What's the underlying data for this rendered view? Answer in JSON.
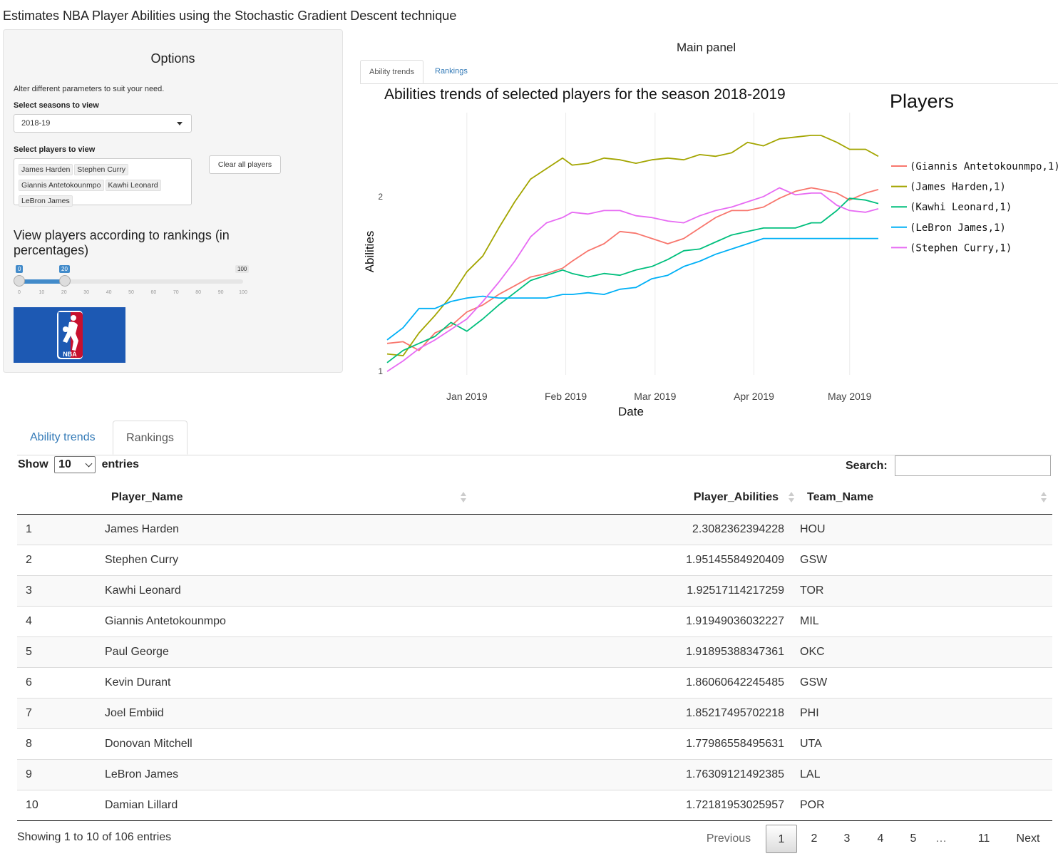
{
  "app": {
    "title": "Estimates NBA Player Abilities using the Stochastic Gradient Descent technique"
  },
  "sidebar": {
    "title": "Options",
    "description": "Alter different parameters to suit your need.",
    "season_label": "Select seasons to view",
    "season_value": "2018-19",
    "players_label": "Select players to view",
    "selected_players": [
      "James Harden",
      "Stephen Curry",
      "Giannis Antetokounmpo",
      "Kawhi Leonard",
      "LeBron James"
    ],
    "clear_button": "Clear all players",
    "rank_heading": "View players according to rankings (in percentages)",
    "slider": {
      "min": 0,
      "max": 100,
      "from": 0,
      "to": 20,
      "min_label": "0",
      "from_label": "0",
      "to_label": "20",
      "max_label": "100",
      "ticks": [
        "0",
        "10",
        "20",
        "30",
        "40",
        "50",
        "60",
        "70",
        "80",
        "90",
        "100"
      ]
    },
    "logo_icon": "nba-logo-icon"
  },
  "main": {
    "title": "Main panel",
    "tabs": [
      {
        "label": "Ability trends"
      },
      {
        "label": "Rankings"
      }
    ]
  },
  "chart_data": {
    "type": "line",
    "title": "Abilities trends of selected players for the season 2018-2019",
    "xlabel": "Date",
    "ylabel": "Abilities",
    "legend_title": "Players",
    "legend_position": "right",
    "x_ticks": [
      "Jan 2019",
      "Feb 2019",
      "Mar 2019",
      "Apr 2019",
      "May 2019"
    ],
    "x_tick_dates": [
      "2019-01-01",
      "2019-02-01",
      "2019-03-01",
      "2019-04-01",
      "2019-05-01"
    ],
    "x_range": [
      "2018-12-07",
      "2019-05-10"
    ],
    "y_ticks": [
      "1",
      "2"
    ],
    "y_tick_values": [
      1,
      2
    ],
    "ylim": [
      0.98,
      2.48
    ],
    "grid": "vertical",
    "series": [
      {
        "name": "(Giannis Antetokounmpo,1)",
        "color": "#f8766d",
        "points": [
          [
            "2018-12-07",
            1.16
          ],
          [
            "2018-12-12",
            1.17
          ],
          [
            "2018-12-17",
            1.12
          ],
          [
            "2018-12-22",
            1.22
          ],
          [
            "2018-12-27",
            1.26
          ],
          [
            "2019-01-01",
            1.34
          ],
          [
            "2019-01-06",
            1.38
          ],
          [
            "2019-01-11",
            1.44
          ],
          [
            "2019-01-16",
            1.49
          ],
          [
            "2019-01-21",
            1.54
          ],
          [
            "2019-01-26",
            1.56
          ],
          [
            "2019-01-31",
            1.59
          ],
          [
            "2019-02-03",
            1.63
          ],
          [
            "2019-02-08",
            1.69
          ],
          [
            "2019-02-13",
            1.73
          ],
          [
            "2019-02-18",
            1.8
          ],
          [
            "2019-02-23",
            1.79
          ],
          [
            "2019-02-28",
            1.76
          ],
          [
            "2019-03-05",
            1.73
          ],
          [
            "2019-03-10",
            1.76
          ],
          [
            "2019-03-15",
            1.82
          ],
          [
            "2019-03-20",
            1.88
          ],
          [
            "2019-03-25",
            1.92
          ],
          [
            "2019-03-30",
            1.92
          ],
          [
            "2019-04-04",
            1.94
          ],
          [
            "2019-04-09",
            1.99
          ],
          [
            "2019-04-14",
            2.03
          ],
          [
            "2019-04-19",
            2.05
          ],
          [
            "2019-04-22",
            2.04
          ],
          [
            "2019-04-27",
            2.02
          ],
          [
            "2019-05-01",
            1.98
          ],
          [
            "2019-05-06",
            2.02
          ],
          [
            "2019-05-10",
            2.04
          ]
        ]
      },
      {
        "name": "(James Harden,1)",
        "color": "#a3a500",
        "points": [
          [
            "2018-12-07",
            1.1
          ],
          [
            "2018-12-12",
            1.09
          ],
          [
            "2018-12-17",
            1.22
          ],
          [
            "2018-12-22",
            1.32
          ],
          [
            "2018-12-27",
            1.43
          ],
          [
            "2019-01-01",
            1.57
          ],
          [
            "2019-01-06",
            1.66
          ],
          [
            "2019-01-11",
            1.82
          ],
          [
            "2019-01-16",
            1.97
          ],
          [
            "2019-01-21",
            2.1
          ],
          [
            "2019-01-26",
            2.16
          ],
          [
            "2019-01-31",
            2.22
          ],
          [
            "2019-02-03",
            2.18
          ],
          [
            "2019-02-08",
            2.19
          ],
          [
            "2019-02-13",
            2.22
          ],
          [
            "2019-02-18",
            2.21
          ],
          [
            "2019-02-23",
            2.19
          ],
          [
            "2019-02-28",
            2.21
          ],
          [
            "2019-03-05",
            2.22
          ],
          [
            "2019-03-10",
            2.21
          ],
          [
            "2019-03-15",
            2.24
          ],
          [
            "2019-03-20",
            2.23
          ],
          [
            "2019-03-25",
            2.25
          ],
          [
            "2019-03-30",
            2.31
          ],
          [
            "2019-04-04",
            2.29
          ],
          [
            "2019-04-09",
            2.33
          ],
          [
            "2019-04-14",
            2.34
          ],
          [
            "2019-04-19",
            2.35
          ],
          [
            "2019-04-22",
            2.35
          ],
          [
            "2019-04-27",
            2.31
          ],
          [
            "2019-05-01",
            2.27
          ],
          [
            "2019-05-06",
            2.27
          ],
          [
            "2019-05-10",
            2.23
          ]
        ]
      },
      {
        "name": "(Kawhi Leonard,1)",
        "color": "#00bf7d",
        "points": [
          [
            "2018-12-07",
            1.05
          ],
          [
            "2018-12-12",
            1.12
          ],
          [
            "2018-12-17",
            1.16
          ],
          [
            "2018-12-22",
            1.2
          ],
          [
            "2018-12-27",
            1.28
          ],
          [
            "2019-01-01",
            1.23
          ],
          [
            "2019-01-06",
            1.3
          ],
          [
            "2019-01-11",
            1.38
          ],
          [
            "2019-01-16",
            1.45
          ],
          [
            "2019-01-21",
            1.52
          ],
          [
            "2019-01-26",
            1.55
          ],
          [
            "2019-01-31",
            1.58
          ],
          [
            "2019-02-03",
            1.56
          ],
          [
            "2019-02-08",
            1.54
          ],
          [
            "2019-02-13",
            1.56
          ],
          [
            "2019-02-18",
            1.55
          ],
          [
            "2019-02-23",
            1.58
          ],
          [
            "2019-02-28",
            1.6
          ],
          [
            "2019-03-05",
            1.64
          ],
          [
            "2019-03-10",
            1.69
          ],
          [
            "2019-03-15",
            1.7
          ],
          [
            "2019-03-20",
            1.74
          ],
          [
            "2019-03-25",
            1.78
          ],
          [
            "2019-03-30",
            1.8
          ],
          [
            "2019-04-04",
            1.82
          ],
          [
            "2019-04-09",
            1.82
          ],
          [
            "2019-04-14",
            1.82
          ],
          [
            "2019-04-19",
            1.85
          ],
          [
            "2019-04-22",
            1.85
          ],
          [
            "2019-04-27",
            1.92
          ],
          [
            "2019-05-01",
            1.99
          ],
          [
            "2019-05-06",
            1.98
          ],
          [
            "2019-05-10",
            1.96
          ]
        ]
      },
      {
        "name": "(LeBron James,1)",
        "color": "#00b0f6",
        "points": [
          [
            "2018-12-07",
            1.18
          ],
          [
            "2018-12-12",
            1.25
          ],
          [
            "2018-12-17",
            1.36
          ],
          [
            "2018-12-22",
            1.36
          ],
          [
            "2018-12-27",
            1.4
          ],
          [
            "2019-01-01",
            1.42
          ],
          [
            "2019-01-06",
            1.43
          ],
          [
            "2019-01-11",
            1.42
          ],
          [
            "2019-01-16",
            1.42
          ],
          [
            "2019-01-21",
            1.42
          ],
          [
            "2019-01-26",
            1.42
          ],
          [
            "2019-01-31",
            1.44
          ],
          [
            "2019-02-03",
            1.44
          ],
          [
            "2019-02-08",
            1.45
          ],
          [
            "2019-02-13",
            1.44
          ],
          [
            "2019-02-18",
            1.47
          ],
          [
            "2019-02-23",
            1.48
          ],
          [
            "2019-02-28",
            1.53
          ],
          [
            "2019-03-05",
            1.55
          ],
          [
            "2019-03-10",
            1.6
          ],
          [
            "2019-03-15",
            1.63
          ],
          [
            "2019-03-20",
            1.67
          ],
          [
            "2019-03-25",
            1.7
          ],
          [
            "2019-03-30",
            1.73
          ],
          [
            "2019-04-04",
            1.76
          ],
          [
            "2019-04-09",
            1.76
          ],
          [
            "2019-04-14",
            1.76
          ],
          [
            "2019-04-19",
            1.76
          ],
          [
            "2019-04-22",
            1.76
          ],
          [
            "2019-04-27",
            1.76
          ],
          [
            "2019-05-01",
            1.76
          ],
          [
            "2019-05-06",
            1.76
          ],
          [
            "2019-05-10",
            1.76
          ]
        ]
      },
      {
        "name": "(Stephen Curry,1)",
        "color": "#e76bf3",
        "points": [
          [
            "2018-12-07",
            1.0
          ],
          [
            "2018-12-12",
            1.06
          ],
          [
            "2018-12-17",
            1.13
          ],
          [
            "2018-12-22",
            1.18
          ],
          [
            "2018-12-27",
            1.24
          ],
          [
            "2019-01-01",
            1.3
          ],
          [
            "2019-01-06",
            1.4
          ],
          [
            "2019-01-11",
            1.51
          ],
          [
            "2019-01-16",
            1.63
          ],
          [
            "2019-01-21",
            1.77
          ],
          [
            "2019-01-26",
            1.85
          ],
          [
            "2019-01-31",
            1.88
          ],
          [
            "2019-02-03",
            1.91
          ],
          [
            "2019-02-08",
            1.9
          ],
          [
            "2019-02-13",
            1.92
          ],
          [
            "2019-02-18",
            1.92
          ],
          [
            "2019-02-23",
            1.89
          ],
          [
            "2019-02-28",
            1.88
          ],
          [
            "2019-03-05",
            1.86
          ],
          [
            "2019-03-10",
            1.85
          ],
          [
            "2019-03-15",
            1.89
          ],
          [
            "2019-03-20",
            1.92
          ],
          [
            "2019-03-25",
            1.94
          ],
          [
            "2019-03-30",
            1.97
          ],
          [
            "2019-04-04",
            2.0
          ],
          [
            "2019-04-09",
            2.05
          ],
          [
            "2019-04-14",
            2.01
          ],
          [
            "2019-04-19",
            2.02
          ],
          [
            "2019-04-22",
            2.02
          ],
          [
            "2019-04-27",
            1.95
          ],
          [
            "2019-05-01",
            1.92
          ],
          [
            "2019-05-06",
            1.91
          ],
          [
            "2019-05-10",
            1.93
          ]
        ]
      }
    ]
  },
  "rankings": {
    "tabs": [
      {
        "label": "Ability trends"
      },
      {
        "label": "Rankings"
      }
    ],
    "show_label": "Show",
    "entries_value": "10",
    "entries_label": "entries",
    "search_label": "Search:",
    "search_value": "",
    "columns": [
      "",
      "Player_Name",
      "Player_Abilities",
      "Team_Name"
    ],
    "rows": [
      [
        "1",
        "James Harden",
        "2.3082362394228",
        "HOU"
      ],
      [
        "2",
        "Stephen Curry",
        "1.95145584920409",
        "GSW"
      ],
      [
        "3",
        "Kawhi Leonard",
        "1.92517114217259",
        "TOR"
      ],
      [
        "4",
        "Giannis Antetokounmpo",
        "1.91949036032227",
        "MIL"
      ],
      [
        "5",
        "Paul George",
        "1.91895388347361",
        "OKC"
      ],
      [
        "6",
        "Kevin Durant",
        "1.86060642245485",
        "GSW"
      ],
      [
        "7",
        "Joel Embiid",
        "1.85217495702218",
        "PHI"
      ],
      [
        "8",
        "Donovan Mitchell",
        "1.77986558495631",
        "UTA"
      ],
      [
        "9",
        "LeBron James",
        "1.76309121492385",
        "LAL"
      ],
      [
        "10",
        "Damian Lillard",
        "1.72181953025957",
        "POR"
      ]
    ],
    "info": "Showing 1 to 10 of 106 entries",
    "pagination": {
      "previous": "Previous",
      "pages": [
        "1",
        "2",
        "3",
        "4",
        "5"
      ],
      "ellipsis": "…",
      "last": "11",
      "next": "Next",
      "current": "1"
    }
  }
}
